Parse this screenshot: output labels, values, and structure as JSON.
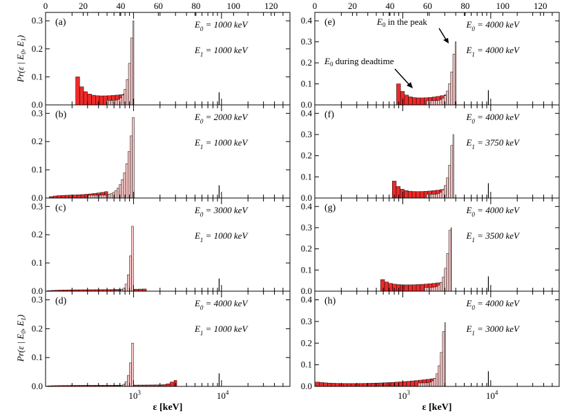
{
  "figure": {
    "top_axis_ticks": [
      "0",
      "20",
      "40",
      "60",
      "80",
      "100",
      "120"
    ],
    "x_label_left": "ε [keV]",
    "x_label_right": "ε [keV]",
    "y_label": "Pr(ε | E0, E1)",
    "log_tick_labels": [
      "10",
      "3",
      "10",
      "4"
    ],
    "callouts": {
      "deadtime": "E0 during deadtime",
      "peak": "E0 in the peak"
    }
  },
  "chart_data": [
    {
      "type": "bar",
      "id": "a",
      "label": "(a)",
      "E0_text": "E0 = 1000 keV",
      "E1_text": "E1 = 1000 keV",
      "ylim": [
        0,
        0.33
      ],
      "yticks": [
        "0.0",
        "0.1",
        "0.2",
        "0.3"
      ],
      "x_scale": "log",
      "xlim_keV": [
        100,
        60000
      ],
      "dark_start_keV": 220,
      "dark_end_keV": 820,
      "light_end_keV": 1010,
      "edge_value": 0.1,
      "valley_value": 0.03,
      "light_start_value": 0.04,
      "peak_value": 0.3,
      "secondary_peak_keV": null,
      "secondary_peak_value": null,
      "spike_keV": 9400,
      "spike_value": 0.045
    },
    {
      "type": "bar",
      "id": "b",
      "label": "(b)",
      "E0_text": "E0 = 2000 keV",
      "E1_text": "E1 = 1000 keV",
      "ylim": [
        0,
        0.33
      ],
      "yticks": [
        "0.0",
        "0.1",
        "0.2",
        "0.3"
      ],
      "x_scale": "log",
      "xlim_keV": [
        100,
        60000
      ],
      "dark_start_keV": 110,
      "dark_end_keV": 510,
      "light_end_keV": 1020,
      "edge_value": 0.005,
      "valley_value": 0.01,
      "light_start_value": 0.025,
      "peak_value": 0.285,
      "secondary_peak_keV": null,
      "secondary_peak_value": null,
      "spike_keV": 9400,
      "spike_value": 0.045
    },
    {
      "type": "bar",
      "id": "c",
      "label": "(c)",
      "E0_text": "E0 = 3000 keV",
      "E1_text": "E1 = 1000 keV",
      "ylim": [
        0,
        0.33
      ],
      "yticks": [
        "0.0",
        "0.1",
        "0.2",
        "0.3"
      ],
      "x_scale": "log",
      "xlim_keV": [
        100,
        60000
      ],
      "dark_start_keV": 105,
      "dark_end_keV": 1400,
      "light_end_keV": 1000,
      "edge_value": 0.002,
      "valley_value": 0.005,
      "light_start_value": 0.008,
      "peak_value": 0.23,
      "secondary_peak_keV": null,
      "secondary_peak_value": null,
      "spike_keV": 9400,
      "spike_value": 0.045
    },
    {
      "type": "bar",
      "id": "d",
      "label": "(d)",
      "E0_text": "E0 = 4000 keV",
      "E1_text": "E1 = 1000 keV",
      "ylim": [
        0,
        0.33
      ],
      "yticks": [
        "0.0",
        "0.1",
        "0.2",
        "0.3"
      ],
      "x_scale": "log",
      "xlim_keV": [
        100,
        60000
      ],
      "dark_start_keV": 105,
      "dark_end_keV": 3100,
      "light_end_keV": 1000,
      "edge_value": 0.002,
      "valley_value": 0.004,
      "light_start_value": 0.006,
      "peak_value": 0.15,
      "secondary_peak_keV": 2950,
      "secondary_peak_value": 0.015,
      "spike_keV": 9400,
      "spike_value": 0.045
    },
    {
      "type": "bar",
      "id": "e",
      "label": "(e)",
      "E0_text": "E0 = 4000 keV",
      "E1_text": "E1 = 4000 keV",
      "ylim": [
        0,
        0.44
      ],
      "yticks": [
        "0.0",
        "0.1",
        "0.2",
        "0.3",
        "0.4"
      ],
      "x_scale": "log",
      "xlim_keV": [
        100,
        60000
      ],
      "dark_start_keV": 850,
      "dark_end_keV": 3100,
      "light_end_keV": 4050,
      "edge_value": 0.1,
      "valley_value": 0.03,
      "light_start_value": 0.05,
      "peak_value": 0.3,
      "secondary_peak_keV": null,
      "secondary_peak_value": null,
      "spike_keV": 9400,
      "spike_value": 0.07
    },
    {
      "type": "bar",
      "id": "f",
      "label": "(f)",
      "E0_text": "E0 = 4000 keV",
      "E1_text": "E1 = 3750 keV",
      "ylim": [
        0,
        0.44
      ],
      "yticks": [
        "0.0",
        "0.1",
        "0.2",
        "0.3",
        "0.4"
      ],
      "x_scale": "log",
      "xlim_keV": [
        100,
        60000
      ],
      "dark_start_keV": 760,
      "dark_end_keV": 3100,
      "light_end_keV": 3800,
      "edge_value": 0.08,
      "valley_value": 0.028,
      "light_start_value": 0.045,
      "peak_value": 0.3,
      "secondary_peak_keV": null,
      "secondary_peak_value": null,
      "spike_keV": 9400,
      "spike_value": 0.07
    },
    {
      "type": "bar",
      "id": "g",
      "label": "(g)",
      "E0_text": "E0 = 4000 keV",
      "E1_text": "E1 = 3500 keV",
      "ylim": [
        0,
        0.44
      ],
      "yticks": [
        "0.0",
        "0.1",
        "0.2",
        "0.3",
        "0.4"
      ],
      "x_scale": "log",
      "xlim_keV": [
        100,
        60000
      ],
      "dark_start_keV": 560,
      "dark_end_keV": 2950,
      "light_end_keV": 3550,
      "edge_value": 0.055,
      "valley_value": 0.028,
      "light_start_value": 0.045,
      "peak_value": 0.3,
      "secondary_peak_keV": null,
      "secondary_peak_value": null,
      "spike_keV": 9400,
      "spike_value": 0.07
    },
    {
      "type": "bar",
      "id": "h",
      "label": "(h)",
      "E0_text": "E0 = 4000 keV",
      "E1_text": "E1 = 3000 keV",
      "ylim": [
        0,
        0.44
      ],
      "yticks": [
        "0.0",
        "0.1",
        "0.2",
        "0.3",
        "0.4"
      ],
      "x_scale": "log",
      "xlim_keV": [
        100,
        60000
      ],
      "dark_start_keV": 102,
      "dark_end_keV": 2500,
      "light_end_keV": 3050,
      "edge_value": 0.02,
      "valley_value": 0.012,
      "light_start_value": 0.04,
      "peak_value": 0.295,
      "secondary_peak_keV": null,
      "secondary_peak_value": null,
      "spike_keV": 9400,
      "spike_value": 0.07
    }
  ]
}
